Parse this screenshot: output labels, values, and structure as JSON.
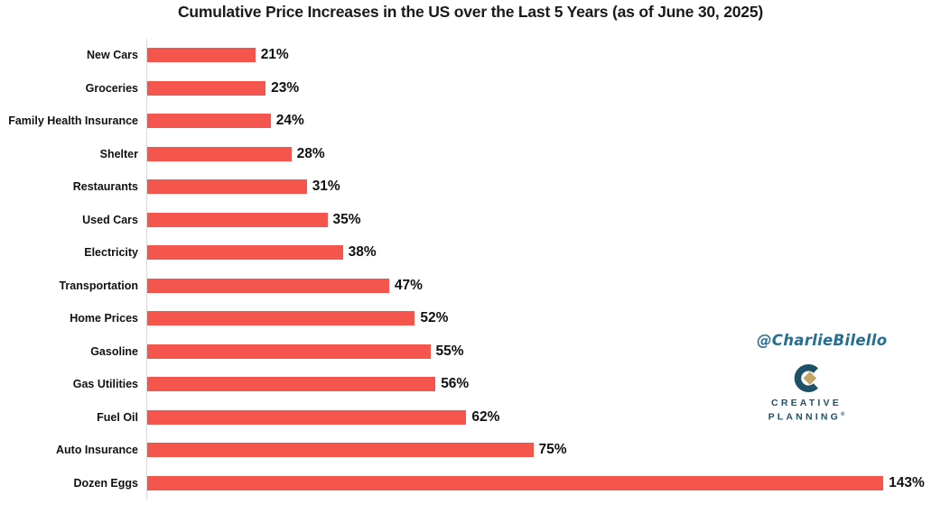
{
  "chart_data": {
    "type": "bar",
    "orientation": "horizontal",
    "title": "Cumulative Price Increases in the US over the Last 5 Years (as of June 30, 2025)",
    "categories": [
      "New Cars",
      "Groceries",
      "Family Health Insurance",
      "Shelter",
      "Restaurants",
      "Used Cars",
      "Electricity",
      "Transportation",
      "Home Prices",
      "Gasoline",
      "Gas Utilities",
      "Fuel Oil",
      "Auto Insurance",
      "Dozen Eggs"
    ],
    "values": [
      21,
      23,
      24,
      28,
      31,
      35,
      38,
      47,
      52,
      55,
      56,
      62,
      75,
      143
    ],
    "value_suffix": "%",
    "xlim": [
      0,
      152
    ],
    "xlabel": "",
    "ylabel": "",
    "grid": false,
    "legend": false,
    "bar_color": "#f4554d",
    "axis_color": "#d9d9d9",
    "label_color": "#111111"
  },
  "watermark": {
    "text": "@CharlieBilello",
    "color": "#256e91"
  },
  "logo": {
    "line1": "CREATIVE",
    "line2": "PLANNING",
    "trademark": "®",
    "navy": "#1d5168",
    "gold": "#c4a567"
  }
}
